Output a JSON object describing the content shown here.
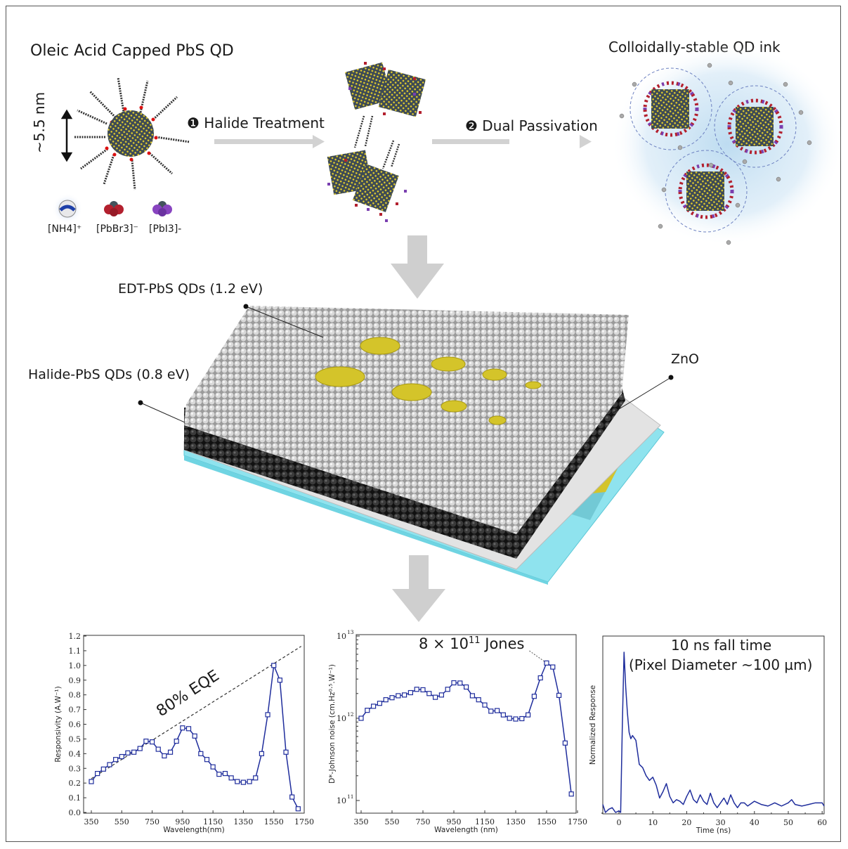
{
  "figure": {
    "top": {
      "qd_title": "Oleic Acid Capped PbS QD",
      "size_label": "~5.5 nm",
      "step1_num": "❶",
      "step1_label": "Halide Treatment",
      "step2_num": "❷",
      "step2_label": "Dual Passivation",
      "ink_title": "Colloidally-stable QD ink",
      "legend": [
        {
          "label": "[NH4]⁺",
          "color": "#2a5fb0"
        },
        {
          "label": "[PbBr3]⁻",
          "color": "#b3202e"
        },
        {
          "label": "[PbI3]-",
          "color": "#7a3fb0"
        }
      ]
    },
    "device": {
      "label_edt": "EDT-PbS QDs (1.2 eV)",
      "label_halide": "Halide-PbS QDs (0.8 eV)",
      "label_zno": "ZnO"
    },
    "colors": {
      "series": "#1f2d9c",
      "gold": "#d4c42a",
      "glass": "#8fe3ee",
      "arrow": "#cfcfcf",
      "dark_qd": "#2a2a2a",
      "light_qd": "#cfcfcf"
    }
  },
  "chart_data": [
    {
      "type": "line",
      "title": "",
      "annotation": "80% EQE",
      "xlabel": "Wavelength(nm)",
      "ylabel": "Responsivity (A.W⁻¹)",
      "xlim": [
        350,
        1750
      ],
      "ylim": [
        0.0,
        1.2
      ],
      "xticks": [
        350,
        550,
        750,
        950,
        1150,
        1350,
        1550,
        1750
      ],
      "yticks": [
        0.0,
        0.1,
        0.2,
        0.3,
        0.4,
        0.5,
        0.6,
        0.7,
        0.8,
        0.9,
        1.0,
        1.1,
        1.2
      ],
      "grid": false,
      "x": [
        350,
        390,
        430,
        470,
        510,
        550,
        590,
        630,
        670,
        710,
        750,
        790,
        830,
        870,
        910,
        950,
        990,
        1030,
        1070,
        1110,
        1150,
        1190,
        1230,
        1270,
        1310,
        1350,
        1390,
        1430,
        1470,
        1510,
        1550,
        1590,
        1630,
        1670,
        1710
      ],
      "series": [
        {
          "name": "Responsivity",
          "values": [
            0.21,
            0.265,
            0.295,
            0.325,
            0.36,
            0.38,
            0.405,
            0.41,
            0.435,
            0.485,
            0.48,
            0.43,
            0.385,
            0.41,
            0.485,
            0.575,
            0.57,
            0.52,
            0.4,
            0.36,
            0.31,
            0.26,
            0.265,
            0.235,
            0.21,
            0.205,
            0.21,
            0.235,
            0.4,
            0.665,
            1.0,
            0.9,
            0.41,
            0.105,
            0.025
          ]
        },
        {
          "name": "80% EQE",
          "style": "dashed",
          "x": [
            350,
            1730
          ],
          "values": [
            0.23,
            1.13
          ]
        }
      ]
    },
    {
      "type": "line",
      "title": "",
      "annotation": "8 × 10¹¹ Jones",
      "xlabel": "Wavelength (nm)",
      "ylabel": "D*-Johnson noise (cm.Hz⁰·⁵.W⁻¹)",
      "yscale": "log",
      "xlim": [
        350,
        1750
      ],
      "ylim": [
        70000000000.0,
        10000000000000.0
      ],
      "xticks": [
        350,
        550,
        750,
        950,
        1150,
        1350,
        1550,
        1750
      ],
      "yticks": [
        "10¹¹",
        "10¹²",
        "10¹³"
      ],
      "grid": false,
      "x": [
        350,
        390,
        430,
        470,
        510,
        550,
        590,
        630,
        670,
        710,
        750,
        790,
        830,
        870,
        910,
        950,
        990,
        1030,
        1070,
        1110,
        1150,
        1190,
        1230,
        1270,
        1310,
        1350,
        1390,
        1430,
        1470,
        1510,
        1550,
        1590,
        1630,
        1670,
        1710
      ],
      "series": [
        {
          "name": "D*",
          "values": [
            1000000000000.0,
            1250000000000.0,
            1400000000000.0,
            1520000000000.0,
            1680000000000.0,
            1780000000000.0,
            1880000000000.0,
            1920000000000.0,
            2050000000000.0,
            2250000000000.0,
            2220000000000.0,
            2000000000000.0,
            1800000000000.0,
            1920000000000.0,
            2250000000000.0,
            2700000000000.0,
            2680000000000.0,
            2400000000000.0,
            1880000000000.0,
            1680000000000.0,
            1450000000000.0,
            1220000000000.0,
            1240000000000.0,
            1100000000000.0,
            1000000000000.0,
            980000000000.0,
            990000000000.0,
            1100000000000.0,
            1850000000000.0,
            3100000000000.0,
            4700000000000.0,
            4200000000000.0,
            1900000000000.0,
            500000000000.0,
            120000000000.0
          ]
        }
      ]
    },
    {
      "type": "line",
      "title": "10 ns fall time",
      "subtitle": "(Pixel Diameter ~100 µm)",
      "xlabel": "Time (ns)",
      "ylabel": "Normalized Response",
      "xlim": [
        -5,
        62
      ],
      "ylim": [
        0,
        1.1
      ],
      "xticks": [
        0,
        10,
        20,
        30,
        40,
        50,
        60
      ],
      "grid": false,
      "x": [
        -5,
        -4,
        -3,
        -2,
        -1,
        0,
        0.5,
        1,
        1.5,
        2,
        2.5,
        3,
        3.5,
        4,
        5,
        6,
        7,
        8,
        9,
        10,
        11,
        12,
        13,
        14,
        15,
        16,
        17,
        18,
        19,
        20,
        21,
        22,
        23,
        24,
        25,
        26,
        27,
        28,
        29,
        30,
        31,
        32,
        33,
        34,
        35,
        36,
        37,
        38,
        40,
        42,
        44,
        46,
        47,
        48,
        50,
        51,
        52,
        54,
        56,
        58,
        60,
        62
      ],
      "series": [
        {
          "name": "Response",
          "values": [
            0.05,
            0.0,
            0.02,
            0.03,
            0.0,
            0.01,
            0.0,
            0.55,
            1.0,
            0.78,
            0.62,
            0.5,
            0.46,
            0.48,
            0.45,
            0.3,
            0.28,
            0.23,
            0.2,
            0.22,
            0.17,
            0.09,
            0.13,
            0.18,
            0.1,
            0.06,
            0.08,
            0.07,
            0.05,
            0.1,
            0.14,
            0.08,
            0.06,
            0.11,
            0.07,
            0.05,
            0.12,
            0.06,
            0.03,
            0.06,
            0.09,
            0.05,
            0.11,
            0.06,
            0.03,
            0.06,
            0.06,
            0.04,
            0.07,
            0.05,
            0.04,
            0.06,
            0.05,
            0.04,
            0.06,
            0.08,
            0.05,
            0.04,
            0.05,
            0.06,
            0.06,
            0.04
          ]
        }
      ]
    }
  ]
}
